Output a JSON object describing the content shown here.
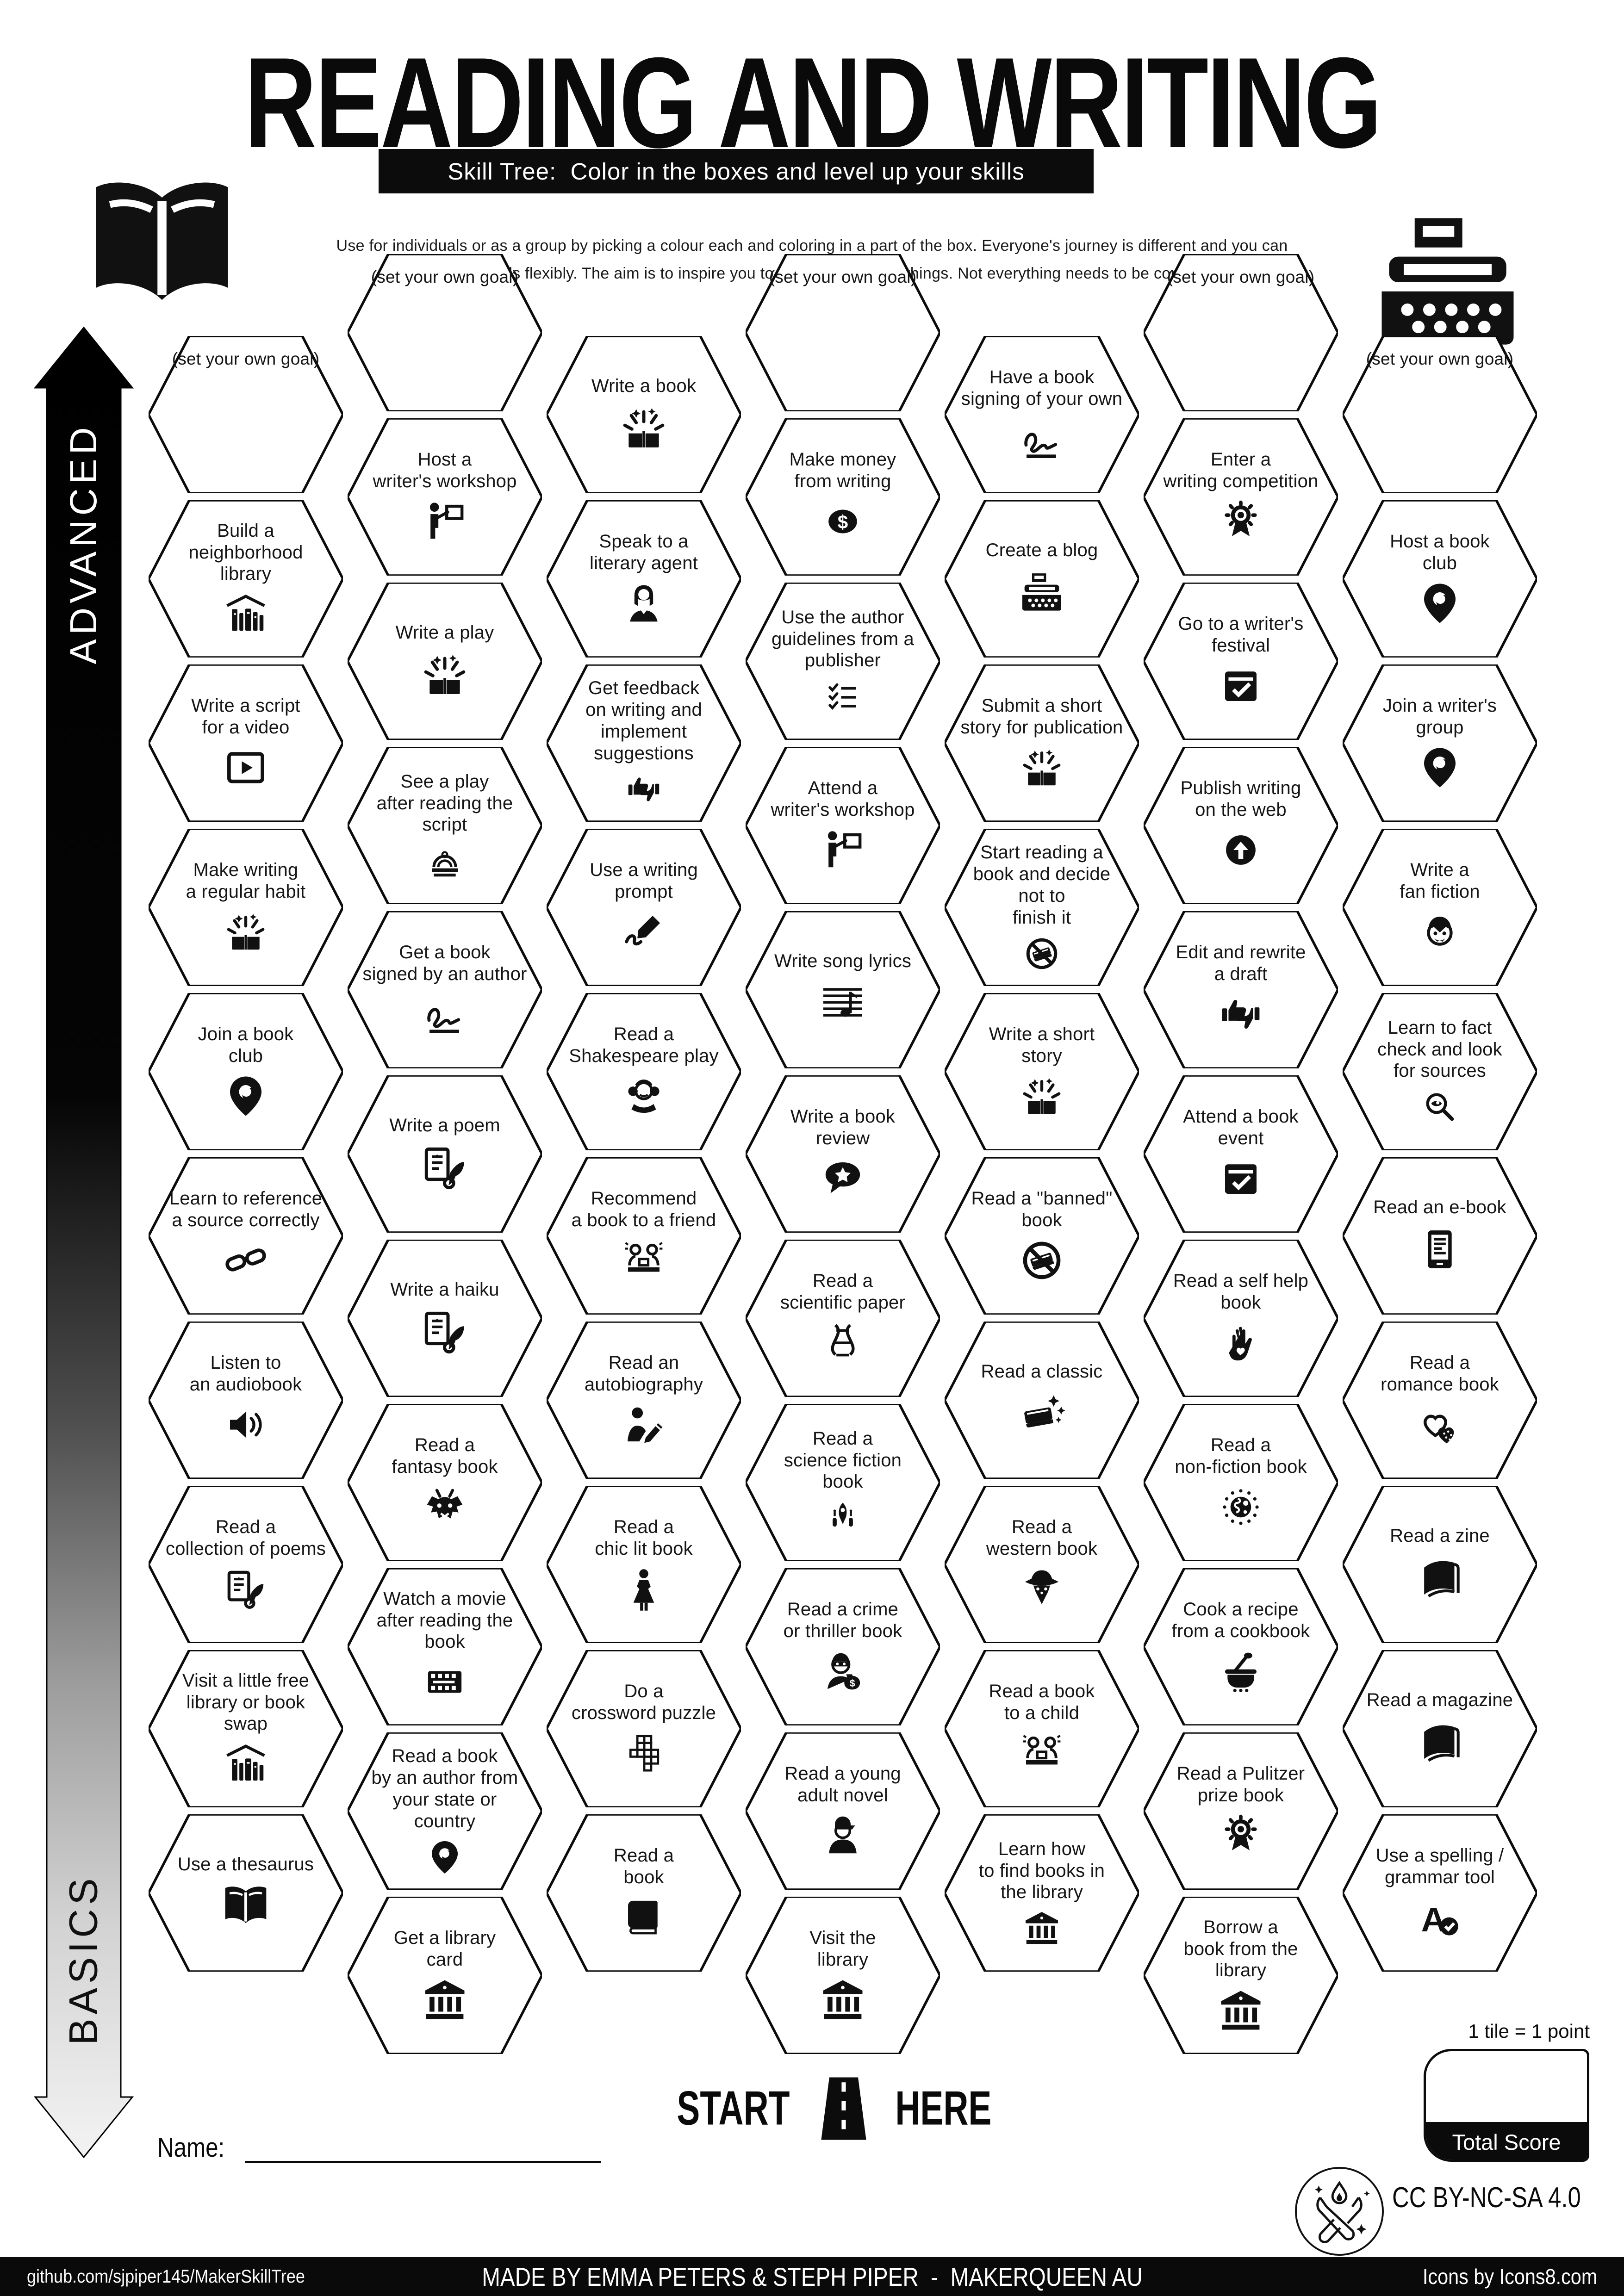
{
  "title": "READING AND WRITING",
  "subtitle": "Skill Tree:  Color in the boxes and level up your skills",
  "description": [
    "Use for individuals or as a group by picking a colour each and coloring in a part of the box.  Everyone's journey is different and you can",
    "interpret the goals flexibly.  The aim is to inspire you to learn and try new things. Not everything needs to be completed."
  ],
  "axis": {
    "advanced": "ADVANCED",
    "basics": "BASICS"
  },
  "goal_hex_label": "(set your own goal)",
  "header_icons": [
    "open-book-icon",
    "typewriter-icon"
  ],
  "accent_colors": {
    "ink": "#0b0b0b",
    "paper": "#ffffff"
  },
  "start": {
    "start_label": "START",
    "here_label": "HERE"
  },
  "name_label": "Name:",
  "score": {
    "note": "1 tile = 1 point",
    "total_label": "Total Score"
  },
  "license_label": "CC BY-NC-SA 4.0",
  "footer": {
    "left": "github.com/sjpiper145/MakerSkillTree",
    "center": "MADE BY EMMA PETERS & STEPH PIPER  -  MAKERQUEEN AU",
    "right": "Icons by Icons8.com"
  },
  "hexes": [
    {
      "col": 0,
      "row": 0,
      "goal": true,
      "label": "(set your own goal)",
      "icon": null
    },
    {
      "col": 0,
      "row": 1,
      "label": "Build a\nneighborhood library",
      "icon": "books-shelf"
    },
    {
      "col": 0,
      "row": 2,
      "label": "Write a script\nfor a video",
      "icon": "play-video"
    },
    {
      "col": 0,
      "row": 3,
      "label": "Make writing\na regular habit",
      "icon": "burst-book"
    },
    {
      "col": 0,
      "row": 4,
      "label": "Join a book\nclub",
      "icon": "pin"
    },
    {
      "col": 0,
      "row": 5,
      "label": "Learn to reference\na source correctly",
      "icon": "link"
    },
    {
      "col": 0,
      "row": 6,
      "label": "Listen to\nan audiobook",
      "icon": "speaker"
    },
    {
      "col": 0,
      "row": 7,
      "label": "Read a\ncollection of poems",
      "icon": "scroll-feather"
    },
    {
      "col": 0,
      "row": 8,
      "label": "Visit a little free\nlibrary or book swap",
      "icon": "books-shelf"
    },
    {
      "col": 0,
      "row": 9,
      "label": "Use a thesaurus",
      "icon": "book-open"
    },
    {
      "col": 1,
      "row": 0,
      "goal": true,
      "label": "(set your own goal)",
      "icon": null
    },
    {
      "col": 1,
      "row": 1,
      "label": "Host a\nwriter's workshop",
      "icon": "presenter"
    },
    {
      "col": 1,
      "row": 2,
      "label": "Write a play",
      "icon": "burst-book"
    },
    {
      "col": 1,
      "row": 3,
      "label": "See a play\nafter reading the\nscript",
      "icon": "theater"
    },
    {
      "col": 1,
      "row": 4,
      "label": "Get a book\nsigned by an author",
      "icon": "signature"
    },
    {
      "col": 1,
      "row": 5,
      "label": "Write a poem",
      "icon": "scroll-feather"
    },
    {
      "col": 1,
      "row": 6,
      "label": "Write a haiku",
      "icon": "scroll-feather"
    },
    {
      "col": 1,
      "row": 7,
      "label": "Read a\nfantasy book",
      "icon": "dragon"
    },
    {
      "col": 1,
      "row": 8,
      "label": "Watch a movie\nafter reading the book",
      "icon": "film"
    },
    {
      "col": 1,
      "row": 9,
      "label": "Read a book\nby an author from\nyour state or country",
      "icon": "pin"
    },
    {
      "col": 1,
      "row": 10,
      "label": "Get a library\ncard",
      "icon": "bank"
    },
    {
      "col": 2,
      "row": 0,
      "label": "Write a book",
      "icon": "burst-book"
    },
    {
      "col": 2,
      "row": 1,
      "label": "Speak to a\nliterary agent",
      "icon": "woman"
    },
    {
      "col": 2,
      "row": 2,
      "label": "Get feedback\non writing and\nimplement suggestions",
      "icon": "thumbs"
    },
    {
      "col": 2,
      "row": 3,
      "label": "Use a writing\nprompt",
      "icon": "brush"
    },
    {
      "col": 2,
      "row": 4,
      "label": "Read a\nShakespeare play",
      "icon": "shakespeare"
    },
    {
      "col": 2,
      "row": 5,
      "label": "Recommend\na book to a friend",
      "icon": "friends"
    },
    {
      "col": 2,
      "row": 6,
      "label": "Read an\nautobiography",
      "icon": "person-pencil"
    },
    {
      "col": 2,
      "row": 7,
      "label": "Read a\nchic lit book",
      "icon": "dress"
    },
    {
      "col": 2,
      "row": 8,
      "label": "Do a\ncrossword puzzle",
      "icon": "crossword"
    },
    {
      "col": 2,
      "row": 9,
      "label": "Read a\nbook",
      "icon": "book"
    },
    {
      "col": 3,
      "row": 0,
      "goal": true,
      "label": "(set your own goal)",
      "icon": null
    },
    {
      "col": 3,
      "row": 1,
      "label": "Make money\nfrom writing",
      "icon": "dollar"
    },
    {
      "col": 3,
      "row": 2,
      "label": "Use the author\nguidelines from a\npublisher",
      "icon": "checklist"
    },
    {
      "col": 3,
      "row": 3,
      "label": "Attend a\nwriter's workshop",
      "icon": "presenter"
    },
    {
      "col": 3,
      "row": 4,
      "label": "Write song lyrics",
      "icon": "music"
    },
    {
      "col": 3,
      "row": 5,
      "label": "Write a book\nreview",
      "icon": "review"
    },
    {
      "col": 3,
      "row": 6,
      "label": "Read a\nscientific paper",
      "icon": "dna"
    },
    {
      "col": 3,
      "row": 7,
      "label": "Read a\nscience fiction\nbook",
      "icon": "scifi"
    },
    {
      "col": 3,
      "row": 8,
      "label": "Read a crime\nor thriller book",
      "icon": "robber"
    },
    {
      "col": 3,
      "row": 9,
      "label": "Read a young\nadult novel",
      "icon": "cap-person"
    },
    {
      "col": 3,
      "row": 10,
      "label": "Visit the\nlibrary",
      "icon": "bank"
    },
    {
      "col": 4,
      "row": 0,
      "label": "Have a book\nsigning of your own",
      "icon": "signature"
    },
    {
      "col": 4,
      "row": 1,
      "label": "Create a blog",
      "icon": "typewriter"
    },
    {
      "col": 4,
      "row": 2,
      "label": "Submit a short\nstory for publication",
      "icon": "burst-book"
    },
    {
      "col": 4,
      "row": 3,
      "label": "Start reading a\nbook and decide not to\nfinish it",
      "icon": "banned-book"
    },
    {
      "col": 4,
      "row": 4,
      "label": "Write a short\nstory",
      "icon": "burst-book"
    },
    {
      "col": 4,
      "row": 5,
      "label": "Read a \"banned\"\nbook",
      "icon": "banned-book"
    },
    {
      "col": 4,
      "row": 6,
      "label": "Read a classic",
      "icon": "classic"
    },
    {
      "col": 4,
      "row": 7,
      "label": "Read a\nwestern book",
      "icon": "cowboy"
    },
    {
      "col": 4,
      "row": 8,
      "label": "Read a book\nto a child",
      "icon": "friends"
    },
    {
      "col": 4,
      "row": 9,
      "label": "Learn how\nto find books in\nthe library",
      "icon": "bank"
    },
    {
      "col": 5,
      "row": 0,
      "goal": true,
      "label": "(set your own goal)",
      "icon": null
    },
    {
      "col": 5,
      "row": 1,
      "label": "Enter a\nwriting competition",
      "icon": "medal"
    },
    {
      "col": 5,
      "row": 2,
      "label": "Go to a writer's\nfestival",
      "icon": "calendar"
    },
    {
      "col": 5,
      "row": 3,
      "label": "Publish writing\non the web",
      "icon": "upload"
    },
    {
      "col": 5,
      "row": 4,
      "label": "Edit and rewrite\na draft",
      "icon": "thumbs"
    },
    {
      "col": 5,
      "row": 5,
      "label": "Attend a book\nevent",
      "icon": "calendar"
    },
    {
      "col": 5,
      "row": 6,
      "label": "Read a self help\nbook",
      "icon": "hand"
    },
    {
      "col": 5,
      "row": 7,
      "label": "Read a\nnon-fiction book",
      "icon": "globe"
    },
    {
      "col": 5,
      "row": 8,
      "label": "Cook a recipe\nfrom a cookbook",
      "icon": "pot"
    },
    {
      "col": 5,
      "row": 9,
      "label": "Read a Pulitzer\nprize book",
      "icon": "medal"
    },
    {
      "col": 5,
      "row": 10,
      "label": "Borrow a\nbook from the library",
      "icon": "bank"
    },
    {
      "col": 6,
      "row": 0,
      "goal": true,
      "label": "(set your own goal)",
      "icon": null
    },
    {
      "col": 6,
      "row": 1,
      "label": "Host a book\nclub",
      "icon": "pin"
    },
    {
      "col": 6,
      "row": 2,
      "label": "Join a writer's\ngroup",
      "icon": "pin"
    },
    {
      "col": 6,
      "row": 3,
      "label": "Write a\nfan fiction",
      "icon": "vampire"
    },
    {
      "col": 6,
      "row": 4,
      "label": "Learn to fact\ncheck and look\nfor sources",
      "icon": "magnifier"
    },
    {
      "col": 6,
      "row": 5,
      "label": "Read an e-book",
      "icon": "ereader"
    },
    {
      "col": 6,
      "row": 6,
      "label": "Read a\nromance book",
      "icon": "hearts"
    },
    {
      "col": 6,
      "row": 7,
      "label": "Read a zine",
      "icon": "zine"
    },
    {
      "col": 6,
      "row": 8,
      "label": "Read a magazine",
      "icon": "zine"
    },
    {
      "col": 6,
      "row": 9,
      "label": "Use a spelling /\ngrammar tool",
      "icon": "spellcheck"
    }
  ]
}
